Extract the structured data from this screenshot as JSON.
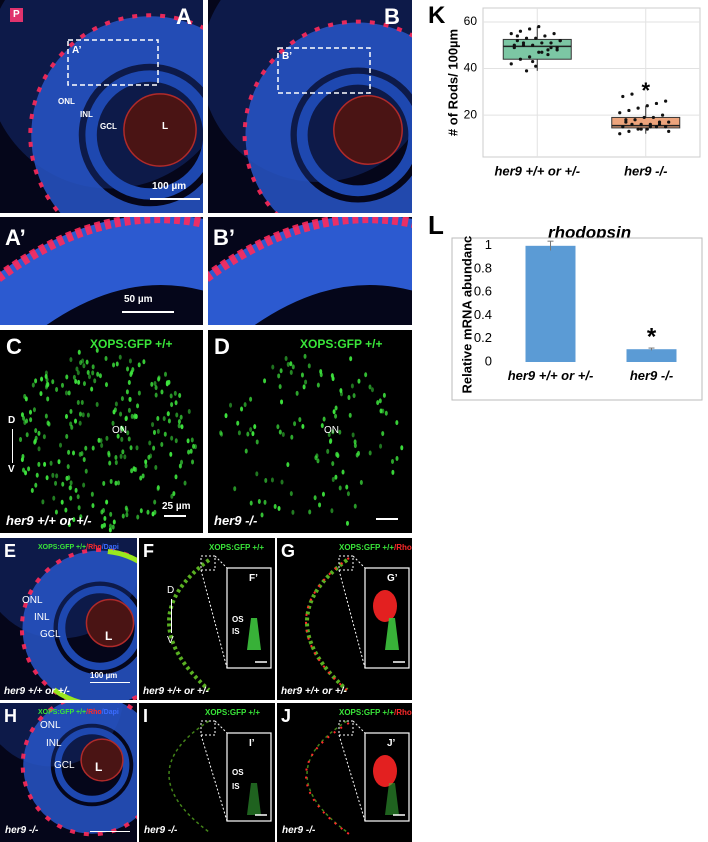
{
  "panels": {
    "a": {
      "label": "A",
      "region": "P",
      "inset": "A’",
      "layers": [
        "ONL",
        "INL",
        "GCL"
      ],
      "lens": "L",
      "scale": "100 µm"
    },
    "b": {
      "label": "B",
      "inset": "B’"
    },
    "a_inset": {
      "label": "A’",
      "scale": "50 µm"
    },
    "b_inset": {
      "label": "B’"
    },
    "c": {
      "label": "C",
      "stain": "XOPS:GFP +/+",
      "axis": [
        "D",
        "V"
      ],
      "landmark": "ON",
      "genotype": "her9 +/+ or +/-",
      "scale": "25 µm"
    },
    "d": {
      "label": "D",
      "stain": "XOPS:GFP +/+",
      "landmark": "ON",
      "genotype": "her9 -/-"
    },
    "e": {
      "label": "E",
      "stain": [
        "XOPS:GFP +/+",
        "/Rho",
        "/Dapi"
      ],
      "layers": [
        "ONL",
        "INL",
        "GCL"
      ],
      "lens": "L",
      "genotype": "her9 +/+ or +/-",
      "scale": "100 µm"
    },
    "f": {
      "label": "F",
      "stain": "XOPS:GFP +/+",
      "axis": [
        "D",
        "V"
      ],
      "inset": "F’",
      "segments": [
        "OS",
        "IS"
      ],
      "genotype": "her9 +/+ or +/-"
    },
    "g": {
      "label": "G",
      "stain": [
        "XOPS:GFP +/+",
        "/Rho"
      ],
      "inset": "G’",
      "genotype": "her9 +/+ or +/-"
    },
    "h": {
      "label": "H",
      "stain": [
        "XOPS:GFP +/+",
        "/Rho",
        "/Dapi"
      ],
      "layers": [
        "ONL",
        "INL",
        "GCL"
      ],
      "lens": "L",
      "genotype": "her9 -/-"
    },
    "i": {
      "label": "I",
      "stain": "XOPS:GFP +/+",
      "inset": "I’",
      "segments": [
        "OS",
        "IS"
      ],
      "genotype": "her9 -/-"
    },
    "j": {
      "label": "J",
      "stain": [
        "XOPS:GFP +/+",
        "/Rho"
      ],
      "inset": "J’",
      "genotype": "her9 -/-"
    }
  },
  "chart_data": [
    {
      "type": "box",
      "panel_label": "K",
      "y_label": "# of Rods/ 100µm",
      "categories": [
        "her9 +/+ or +/-",
        "her9 -/-"
      ],
      "ylim": [
        2,
        66
      ],
      "yticks": [
        20,
        40,
        60
      ],
      "grid": true,
      "annotation": "*",
      "boxes": [
        {
          "color": "#7cc7a4",
          "min": 39,
          "q1": 44,
          "median": 49.5,
          "q3": 52.5,
          "max": 58,
          "points": [
            42,
            44,
            45,
            47,
            48,
            49,
            49,
            50,
            50,
            51,
            51,
            52,
            52,
            53,
            53,
            54,
            55,
            55,
            56,
            57,
            58,
            46,
            48,
            50,
            51,
            43,
            47,
            49,
            52,
            54,
            39,
            41
          ]
        },
        {
          "color": "#eda47c",
          "min": 12,
          "q1": 14.5,
          "median": 15.5,
          "q3": 19,
          "max": 24,
          "points": [
            12,
            13,
            14,
            14,
            15,
            15,
            15,
            16,
            16,
            16,
            17,
            17,
            18,
            18,
            19,
            19,
            20,
            21,
            22,
            23,
            24,
            25,
            26,
            28,
            29,
            14,
            15,
            16,
            13,
            17
          ]
        }
      ]
    },
    {
      "type": "bar",
      "panel_label": "L",
      "title": "rhodopsin",
      "y_label": "Relative mRNA abundance",
      "categories": [
        "her9 +/+ or +/-",
        "her9 -/-"
      ],
      "values": [
        1,
        0.11
      ],
      "errors": [
        0.04,
        0.01
      ],
      "color": "#5b9bd5",
      "ylim": [
        0,
        1.05
      ],
      "yticks": [
        0,
        0.2,
        0.4,
        0.6,
        0.8,
        1
      ],
      "annotation": "*"
    }
  ]
}
